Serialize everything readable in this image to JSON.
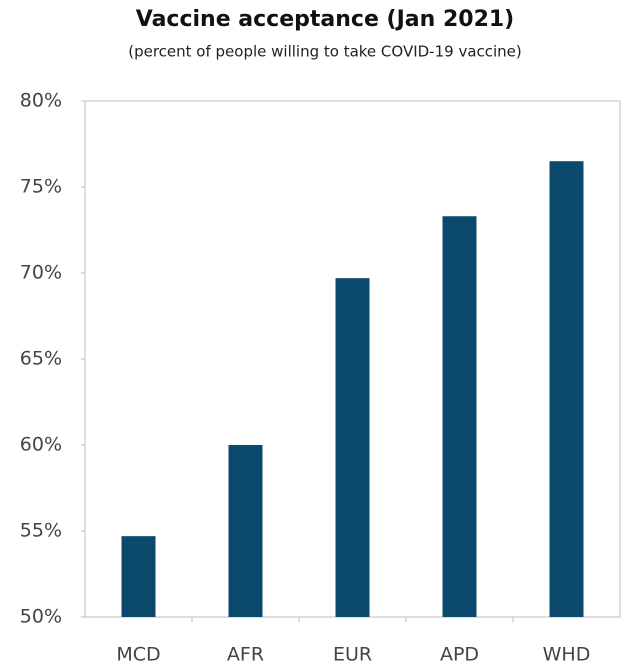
{
  "chart_data": {
    "type": "bar",
    "title": "Vaccine acceptance (Jan 2021)",
    "subtitle": "(percent of people willing to take COVID-19 vaccine)",
    "categories": [
      "MCD",
      "AFR",
      "EUR",
      "APD",
      "WHD"
    ],
    "values": [
      54.7,
      60.0,
      69.7,
      73.3,
      76.5
    ],
    "color": "#0b4a6d",
    "ylim": [
      50,
      80
    ],
    "yticks": [
      {
        "value": 50,
        "label": "50%"
      },
      {
        "value": 55,
        "label": "55%"
      },
      {
        "value": 60,
        "label": "60%"
      },
      {
        "value": 65,
        "label": "65%"
      },
      {
        "value": 70,
        "label": "70%"
      },
      {
        "value": 75,
        "label": "75%"
      },
      {
        "value": 80,
        "label": "80%"
      }
    ],
    "grid": false
  }
}
